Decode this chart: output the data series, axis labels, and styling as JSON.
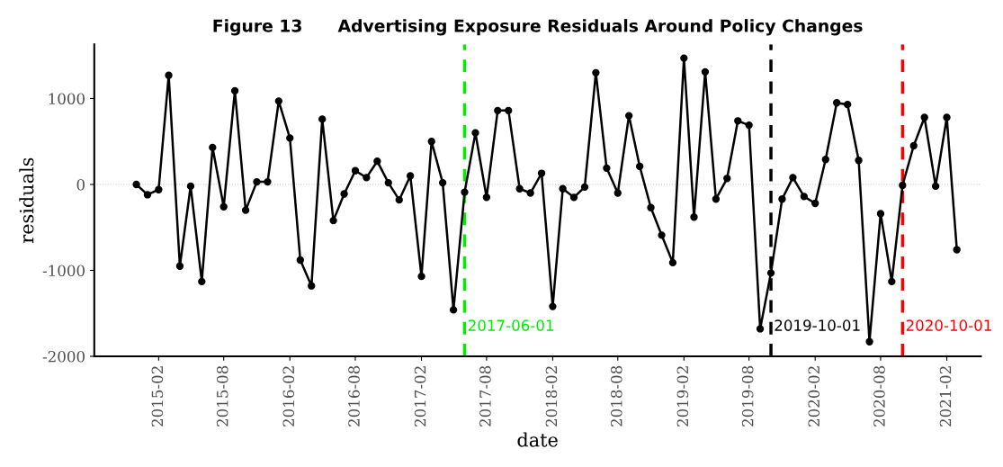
{
  "chart_data": {
    "type": "line",
    "title": "Figure 13      Advertising Exposure Residuals Around Policy Changes",
    "xlabel": "date",
    "ylabel": "residuals",
    "x": [
      "2014-12",
      "2015-01",
      "2015-02",
      "2015-03",
      "2015-04",
      "2015-05",
      "2015-06",
      "2015-07",
      "2015-08",
      "2015-09",
      "2015-10",
      "2015-11",
      "2015-12",
      "2016-01",
      "2016-02",
      "2016-03",
      "2016-04",
      "2016-05",
      "2016-06",
      "2016-07",
      "2016-08",
      "2016-09",
      "2016-10",
      "2016-11",
      "2016-12",
      "2017-01",
      "2017-02",
      "2017-03",
      "2017-04",
      "2017-05",
      "2017-06",
      "2017-07",
      "2017-08",
      "2017-09",
      "2017-10",
      "2017-11",
      "2017-12",
      "2018-01",
      "2018-02",
      "2018-03",
      "2018-04",
      "2018-05",
      "2018-06",
      "2018-07",
      "2018-08",
      "2018-09",
      "2018-10",
      "2018-11",
      "2018-12",
      "2019-01",
      "2019-02",
      "2019-03",
      "2019-04",
      "2019-05",
      "2019-06",
      "2019-07",
      "2019-08",
      "2019-09",
      "2019-10",
      "2019-11",
      "2019-12",
      "2020-01",
      "2020-02",
      "2020-03",
      "2020-04",
      "2020-05",
      "2020-06",
      "2020-07",
      "2020-08",
      "2020-09",
      "2020-10",
      "2020-11",
      "2020-12",
      "2021-01",
      "2021-02",
      "2021-03"
    ],
    "series": [
      {
        "color": "#000000",
        "values": [
          0,
          -120,
          -60,
          1270,
          -950,
          -20,
          -1130,
          430,
          -260,
          1090,
          -300,
          30,
          30,
          970,
          540,
          -880,
          -1180,
          760,
          -420,
          -110,
          160,
          80,
          270,
          20,
          -180,
          100,
          -1070,
          500,
          20,
          -1460,
          -90,
          600,
          -150,
          860,
          860,
          -50,
          -100,
          130,
          -1420,
          -50,
          -150,
          -30,
          1300,
          190,
          -100,
          800,
          210,
          -270,
          -590,
          -910,
          1470,
          -380,
          1310,
          -170,
          70,
          740,
          690,
          -1680,
          -1030,
          -170,
          80,
          -140,
          -220,
          290,
          950,
          930,
          280,
          -1830,
          -340,
          -1130,
          -10,
          450,
          780,
          -20,
          780,
          -760
        ]
      }
    ],
    "marker": "circle",
    "line_style": "solid",
    "xlim": [
      "2014-08-06",
      "2021-05-07"
    ],
    "xticks": [
      {
        "value": "2015-02",
        "label": "2015-02"
      },
      {
        "value": "2015-08",
        "label": "2015-08"
      },
      {
        "value": "2016-02",
        "label": "2016-02"
      },
      {
        "value": "2016-08",
        "label": "2016-08"
      },
      {
        "value": "2017-02",
        "label": "2017-02"
      },
      {
        "value": "2017-08",
        "label": "2017-08"
      },
      {
        "value": "2018-02",
        "label": "2018-02"
      },
      {
        "value": "2018-08",
        "label": "2018-08"
      },
      {
        "value": "2019-02",
        "label": "2019-02"
      },
      {
        "value": "2019-08",
        "label": "2019-08"
      },
      {
        "value": "2020-02",
        "label": "2020-02"
      },
      {
        "value": "2020-08",
        "label": "2020-08"
      },
      {
        "value": "2021-02",
        "label": "2021-02"
      }
    ],
    "ylim": [
      -2000,
      1630
    ],
    "yticks": [
      -2000,
      -1000,
      0,
      1000
    ],
    "grid": false,
    "ref_lines": [
      {
        "axis": "y",
        "value": 0,
        "color": "#bbbbbb",
        "line_style": "dotted"
      },
      {
        "axis": "x",
        "value": "2017-06-01",
        "label": "2017-06-01",
        "color": "#00ee00",
        "line_style": "dashed"
      },
      {
        "axis": "x",
        "value": "2019-10-01",
        "label": "2019-10-01",
        "color": "#000000",
        "line_style": "dashed"
      },
      {
        "axis": "x",
        "value": "2020-10-01",
        "label": "2020-10-01",
        "color": "#ff0000",
        "line_style": "dashed"
      }
    ]
  }
}
